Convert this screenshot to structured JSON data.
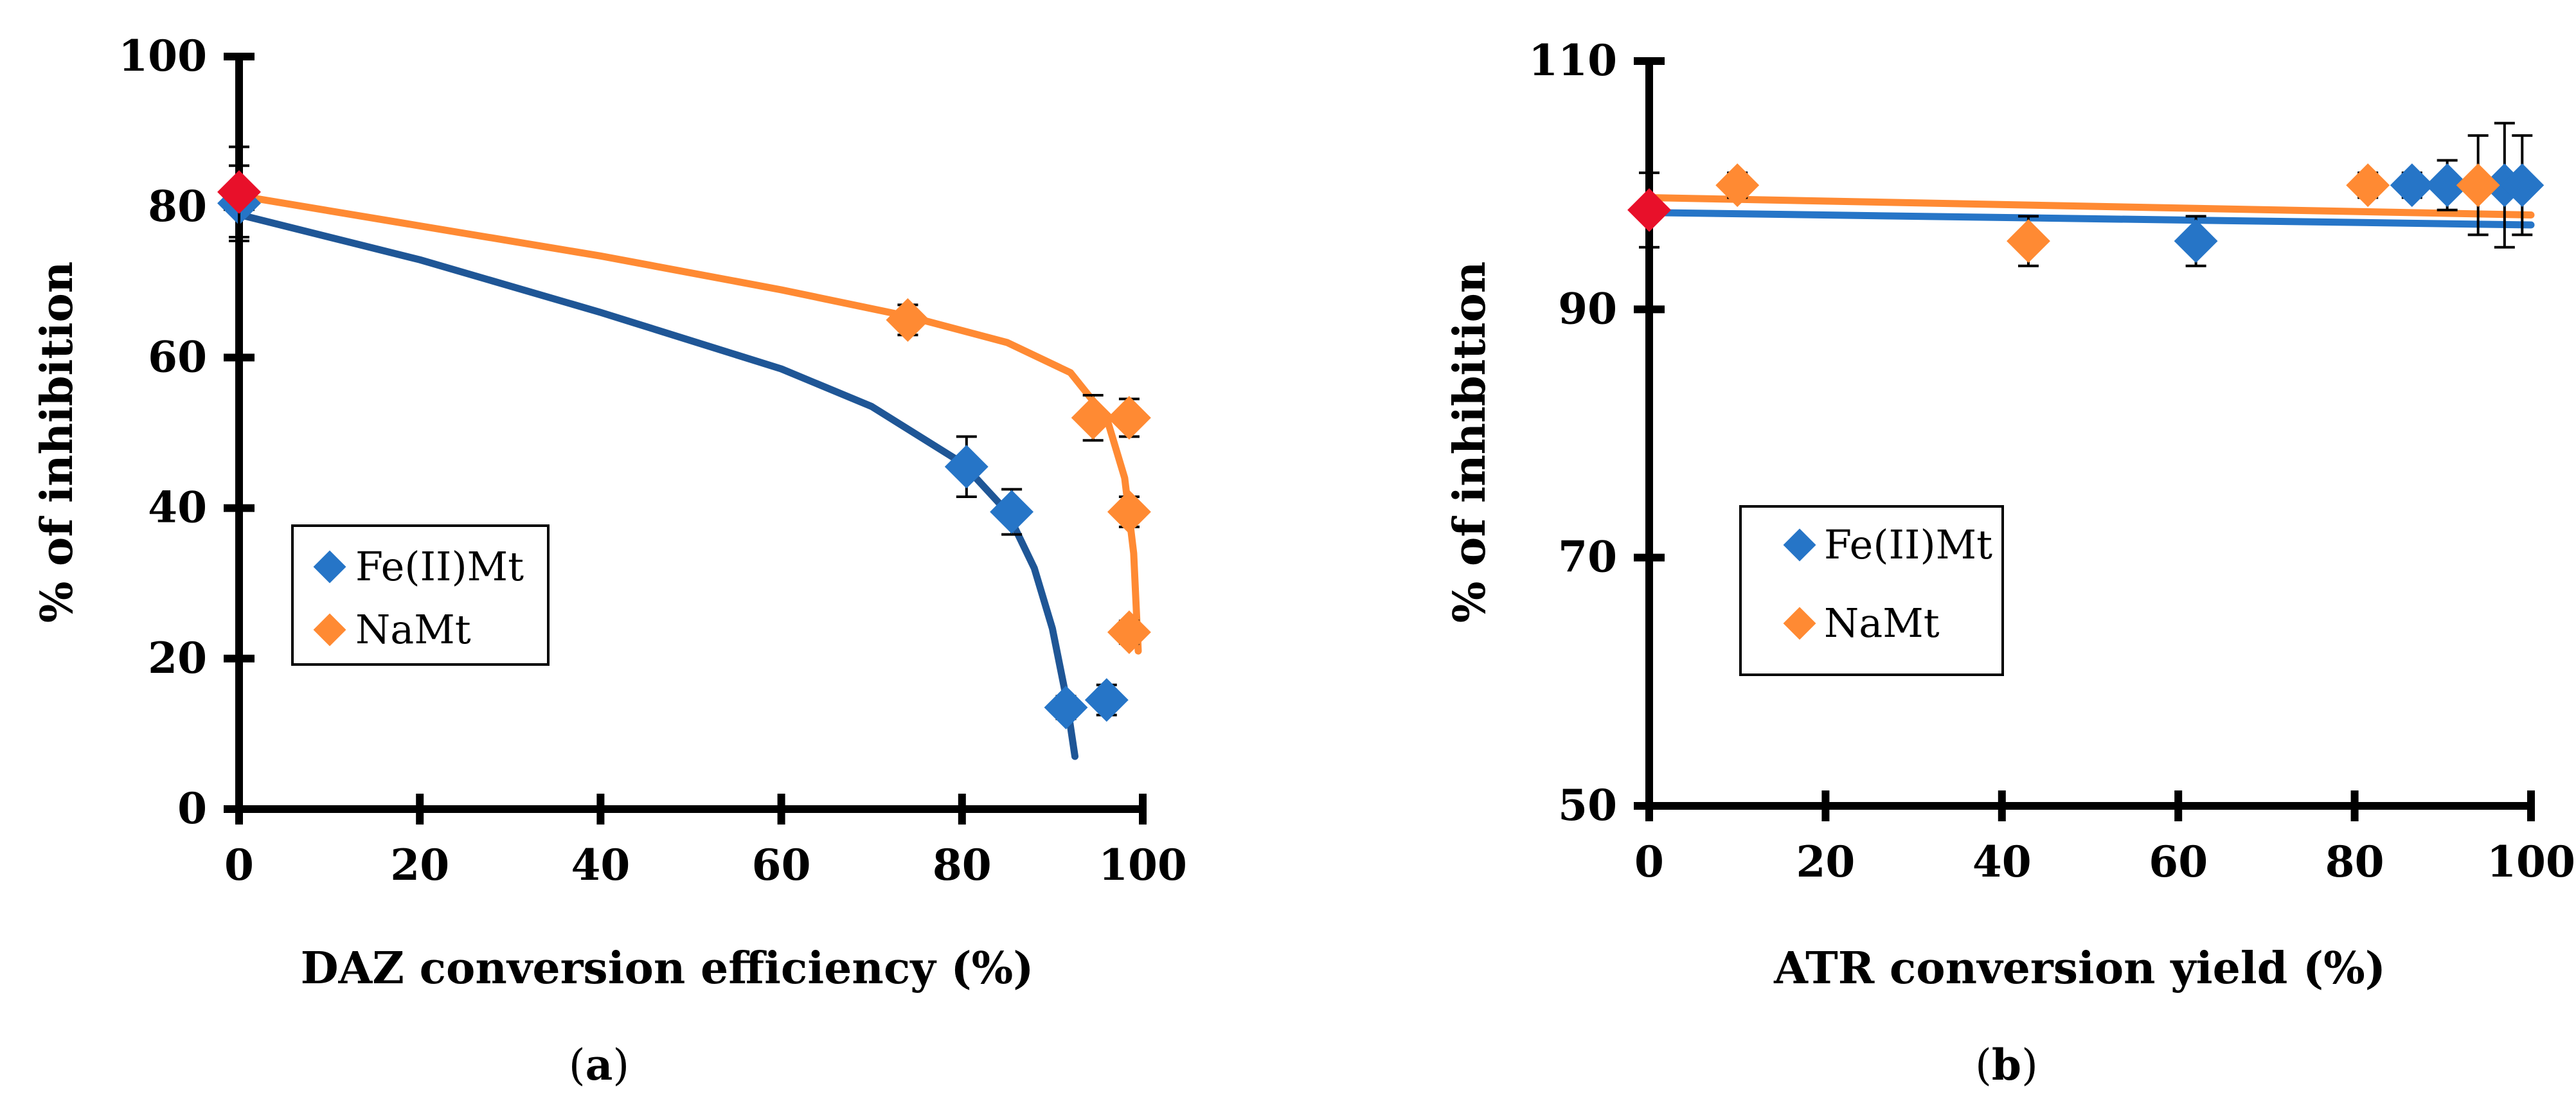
{
  "chart_data": [
    {
      "type": "scatter",
      "panel_label": "a",
      "xlabel": "DAZ conversion efficiency (%)",
      "ylabel": "% of inhibition",
      "xlim": [
        0,
        100
      ],
      "ylim": [
        0,
        100
      ],
      "xticks": [
        "0",
        "20",
        "40",
        "60",
        "80",
        "100"
      ],
      "yticks": [
        "0",
        "20",
        "40",
        "60",
        "80",
        "100"
      ],
      "legend": {
        "position": "center-left",
        "entries": [
          "Fe(II)Mt",
          "NaMt"
        ]
      },
      "control_point": {
        "x": 0,
        "y": 82,
        "err": 6,
        "color": "#e8102a"
      },
      "series": [
        {
          "name": "Fe(II)Mt",
          "color": "#2675c7",
          "line_color": "#1f5696",
          "points": [
            {
              "x": 0,
              "y": 80.5,
              "err": 5
            },
            {
              "x": 80.5,
              "y": 45.5,
              "err": 4
            },
            {
              "x": 85.5,
              "y": 39.5,
              "err": 3
            },
            {
              "x": 91.5,
              "y": 13.5,
              "err": 1.5
            },
            {
              "x": 96.0,
              "y": 14.5,
              "err": 2
            }
          ],
          "trend": [
            [
              0,
              79
            ],
            [
              20,
              73
            ],
            [
              40,
              66
            ],
            [
              60,
              58.5
            ],
            [
              70,
              53.5
            ],
            [
              80,
              46
            ],
            [
              85,
              39.5
            ],
            [
              88,
              32
            ],
            [
              90,
              24
            ],
            [
              91.5,
              15
            ],
            [
              92.5,
              7
            ]
          ]
        },
        {
          "name": "NaMt",
          "color": "#ff8a33",
          "line_color": "#ff8a33",
          "points": [
            {
              "x": 74.0,
              "y": 65.0,
              "err": 2
            },
            {
              "x": 94.5,
              "y": 52.0,
              "err": 3
            },
            {
              "x": 98.5,
              "y": 52.0,
              "err": 2.5
            },
            {
              "x": 98.5,
              "y": 39.5,
              "err": 2
            },
            {
              "x": 98.5,
              "y": 23.5,
              "err": 1.5
            }
          ],
          "trend": [
            [
              0,
              81.5
            ],
            [
              20,
              77.5
            ],
            [
              40,
              73.5
            ],
            [
              60,
              69
            ],
            [
              74,
              65.5
            ],
            [
              85,
              62
            ],
            [
              92,
              58
            ],
            [
              96,
              52
            ],
            [
              98,
              44
            ],
            [
              99,
              34
            ],
            [
              99.5,
              21
            ]
          ]
        }
      ]
    },
    {
      "type": "scatter",
      "panel_label": "b",
      "xlabel": "ATR conversion yield (%)",
      "ylabel": "% of inhibition",
      "xlim": [
        0,
        100
      ],
      "ylim": [
        50,
        110
      ],
      "xticks": [
        "0",
        "20",
        "40",
        "60",
        "80",
        "100"
      ],
      "yticks": [
        "50",
        "70",
        "90",
        "110"
      ],
      "legend": {
        "position": "center-left",
        "entries": [
          "Fe(II)Mt",
          "NaMt"
        ]
      },
      "control_point": {
        "x": 0,
        "y": 98,
        "err": 3,
        "color": "#e8102a"
      },
      "series": [
        {
          "name": "Fe(II)Mt",
          "color": "#2675c7",
          "line_color": "#2675c7",
          "points": [
            {
              "x": 62.0,
              "y": 95.5,
              "err": 2
            },
            {
              "x": 86.5,
              "y": 100.0,
              "err": 1
            },
            {
              "x": 90.5,
              "y": 100.0,
              "err": 2
            },
            {
              "x": 97.0,
              "y": 100.0,
              "err": 5
            },
            {
              "x": 99.0,
              "y": 100.0,
              "err": 4
            }
          ],
          "trend": [
            [
              0,
              97.8
            ],
            [
              100,
              96.8
            ]
          ]
        },
        {
          "name": "NaMt",
          "color": "#ff8a33",
          "line_color": "#ff8a33",
          "points": [
            {
              "x": 10.0,
              "y": 100.0,
              "err": 1
            },
            {
              "x": 43.0,
              "y": 95.5,
              "err": 2
            },
            {
              "x": 81.5,
              "y": 100.0,
              "err": 1
            },
            {
              "x": 94.0,
              "y": 100.0,
              "err": 4
            }
          ],
          "trend": [
            [
              0,
              99.0
            ],
            [
              100,
              97.6
            ]
          ]
        }
      ]
    }
  ]
}
